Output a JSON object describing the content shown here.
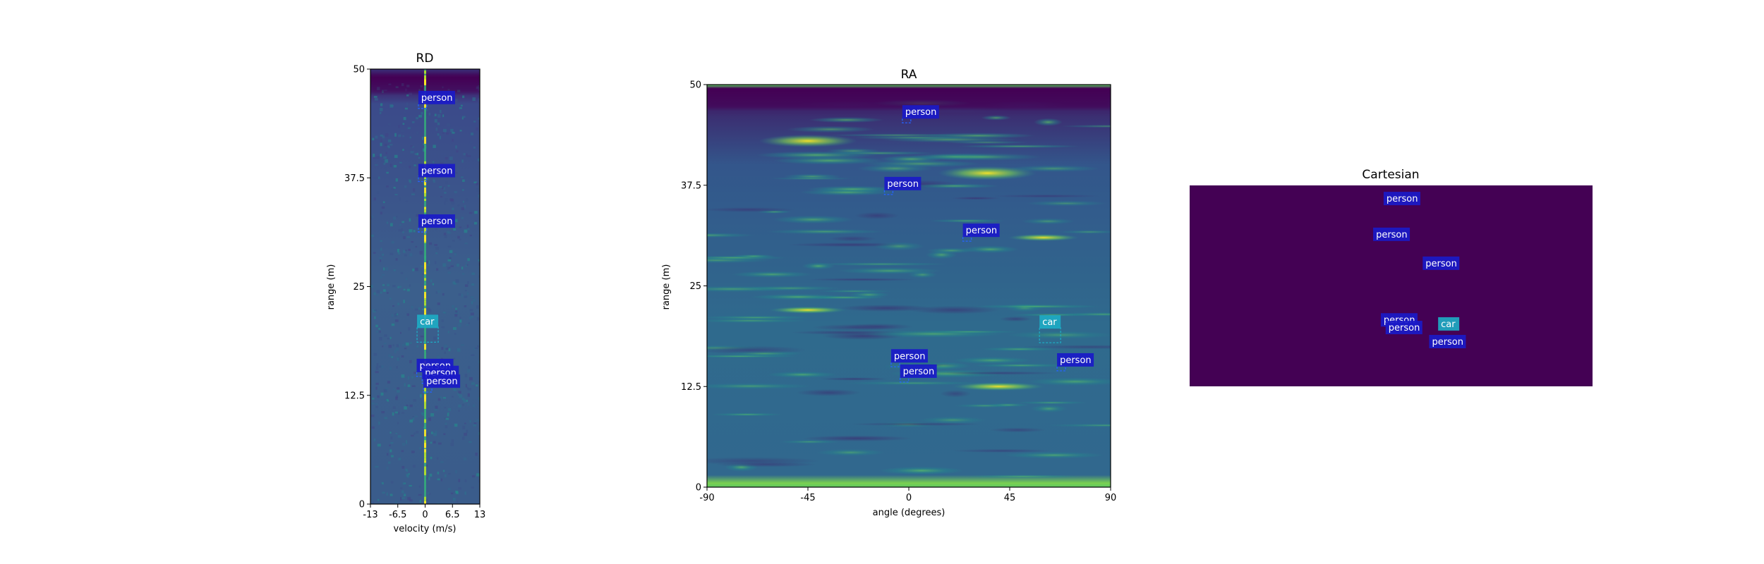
{
  "charts": {
    "rd": {
      "title": "RD",
      "xlabel": "velocity (m/s)",
      "ylabel": "range (m)",
      "xticks": [
        "-13",
        "-6.5",
        "0",
        "6.5",
        "13"
      ],
      "yticks": [
        "0",
        "12.5",
        "25",
        "37.5",
        "50"
      ]
    },
    "ra": {
      "title": "RA",
      "xlabel": "angle (degrees)",
      "ylabel": "range (m)",
      "xticks": [
        "-90",
        "-45",
        "0",
        "45",
        "90"
      ],
      "yticks": [
        "0",
        "12.5",
        "25",
        "37.5",
        "50"
      ]
    },
    "cart": {
      "title": "Cartesian"
    }
  },
  "colors": {
    "person_label_bg": "#1a1ac8",
    "car_label_bg": "#1eaac3",
    "cartesian_bg": "#440154",
    "viridis_dark": "#440154",
    "viridis_mid": "#31688e",
    "viridis_teal": "#21918c",
    "viridis_green": "#5ec962",
    "viridis_yellow": "#fde725"
  },
  "chart_data": [
    {
      "type": "heatmap",
      "title": "RD",
      "xlabel": "velocity (m/s)",
      "ylabel": "range (m)",
      "xlim": [
        -13,
        13
      ],
      "ylim": [
        0,
        50
      ],
      "colormap": "viridis",
      "detections": [
        {
          "label": "person",
          "velocity": -0.6,
          "range": 45.8
        },
        {
          "label": "person",
          "velocity": -0.6,
          "range": 37.4
        },
        {
          "label": "person",
          "velocity": -0.6,
          "range": 31.6
        },
        {
          "label": "car",
          "velocity": 0.6,
          "range": 19.5
        },
        {
          "label": "person",
          "velocity": -1.0,
          "range": 15.0
        },
        {
          "label": "person",
          "velocity": 0.3,
          "range": 14.2
        },
        {
          "label": "person",
          "velocity": 0.6,
          "range": 13.2
        }
      ]
    },
    {
      "type": "heatmap",
      "title": "RA",
      "xlabel": "angle (degrees)",
      "ylabel": "range (m)",
      "xlim": [
        -90,
        90
      ],
      "ylim": [
        0,
        50
      ],
      "colormap": "viridis",
      "detections": [
        {
          "label": "person",
          "angle": -1,
          "range": 45.6
        },
        {
          "label": "person",
          "angle": -9,
          "range": 36.7
        },
        {
          "label": "person",
          "angle": 26,
          "range": 30.9
        },
        {
          "label": "car",
          "angle": 63,
          "range": 18.9
        },
        {
          "label": "person",
          "angle": -6,
          "range": 15.3
        },
        {
          "label": "person",
          "angle": -2,
          "range": 13.4
        },
        {
          "label": "person",
          "angle": 68,
          "range": 14.8
        }
      ]
    },
    {
      "type": "scatter",
      "title": "Cartesian",
      "detections": [
        {
          "label": "person",
          "x": 0.527,
          "y": 0.06
        },
        {
          "label": "person",
          "x": 0.501,
          "y": 0.238
        },
        {
          "label": "person",
          "x": 0.624,
          "y": 0.382
        },
        {
          "label": "person",
          "x": 0.52,
          "y": 0.664
        },
        {
          "label": "person",
          "x": 0.532,
          "y": 0.702
        },
        {
          "label": "car",
          "x": 0.643,
          "y": 0.684
        },
        {
          "label": "person",
          "x": 0.64,
          "y": 0.772
        }
      ]
    }
  ]
}
